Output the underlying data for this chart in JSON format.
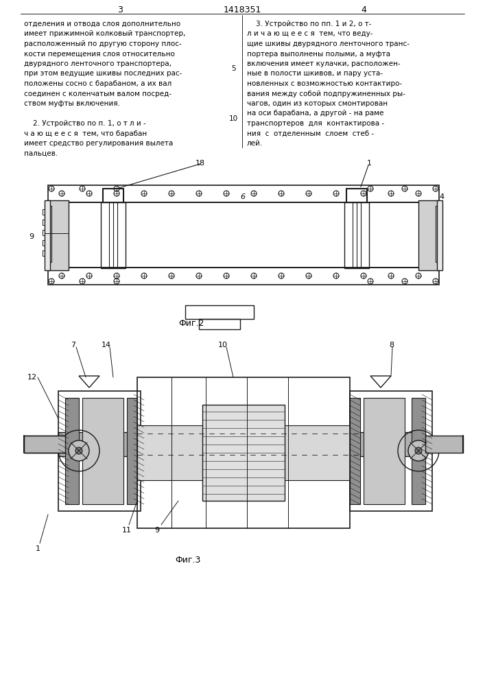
{
  "page_num_left": "3",
  "page_num_right": "4",
  "patent_number": "1418351",
  "col1_text": [
    "отделения и отвода слоя дополнительно",
    "имеет прижимной колковый транспортер,",
    "расположенный по другую сторону плос-",
    "кости перемещения слоя относительно",
    "двурядного ленточного транспортера,",
    "при этом ведущие шкивы последних рас-",
    "положены сосно с барабаном, а их вал",
    "соединен с коленчатым валом посред-",
    "ством муфты включения.",
    "",
    "    2. Устройство по п. 1, о т л и -",
    "ч а ю щ е е с я  тем, что барабан",
    "имеет средство регулирования вылета",
    "пальцев."
  ],
  "col2_line_num_5": "5",
  "col2_line_num_10": "10",
  "col2_text": [
    "    3. Устройство по пп. 1 и 2, о т-",
    "л и ч а ю щ е е с я  тем, что веду-",
    "щие шкивы двурядного ленточного транс-",
    "портера выполнены полыми, а муфта",
    "включения имеет кулачки, расположен-",
    "ные в полости шкивов, и пару уста-",
    "новленных с возможностью контактиро-",
    "вания между собой подпружиненных ры-",
    "чагов, один из которых смонтирован",
    "на оси барабана, а другой - на раме",
    "транспортеров  для  контактирова -",
    "ния  с  отделенным  слоем  стеб -",
    "лей."
  ],
  "fig2_label": "Фиг.2",
  "fig3_label": "Фиг.3",
  "bg_color": "#ffffff",
  "text_color": "#000000",
  "line_color": "#1a1a1a"
}
